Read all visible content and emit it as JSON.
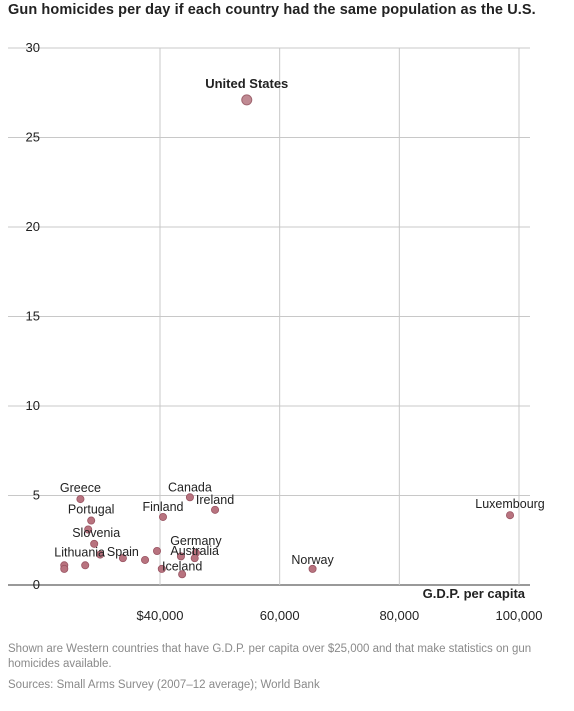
{
  "chart_data": {
    "type": "scatter",
    "title": "Gun homicides per day if each country had the same population as the U.S.",
    "xlabel": "G.D.P. per capita",
    "ylabel": "",
    "xlim": [
      21000,
      101000
    ],
    "ylim": [
      0,
      30
    ],
    "grid": true,
    "x_ticks": [
      40000,
      60000,
      80000,
      100000
    ],
    "x_tick_labels": [
      "$40,000",
      "60,000",
      "80,000",
      "100,000"
    ],
    "y_ticks": [
      0,
      5,
      10,
      15,
      20,
      25,
      30
    ],
    "y_tick_labels": [
      "0",
      "5",
      "10",
      "15",
      "20",
      "25",
      "30"
    ],
    "points": [
      {
        "label": "United States",
        "x": 54500,
        "y": 27.1,
        "highlight": true
      },
      {
        "label": "Greece",
        "x": 26700,
        "y": 4.8
      },
      {
        "label": "Portugal",
        "x": 28500,
        "y": 3.6
      },
      {
        "label": "",
        "x": 28000,
        "y": 3.1
      },
      {
        "label": "Canada",
        "x": 45000,
        "y": 4.9
      },
      {
        "label": "Finland",
        "x": 40500,
        "y": 3.8
      },
      {
        "label": "Ireland",
        "x": 49200,
        "y": 4.2
      },
      {
        "label": "Luxembourg",
        "x": 98500,
        "y": 3.9
      },
      {
        "label": "Slovenia",
        "x": 29000,
        "y": 2.3
      },
      {
        "label": "Lithuania",
        "x": 24000,
        "y": 1.1
      },
      {
        "label": "",
        "x": 24000,
        "y": 0.9
      },
      {
        "label": "",
        "x": 27500,
        "y": 1.1
      },
      {
        "label": "",
        "x": 30000,
        "y": 1.7
      },
      {
        "label": "Spain",
        "x": 33800,
        "y": 1.5
      },
      {
        "label": "",
        "x": 37500,
        "y": 1.4
      },
      {
        "label": "",
        "x": 39500,
        "y": 1.9
      },
      {
        "label": "Germany",
        "x": 46000,
        "y": 1.8
      },
      {
        "label": "Australia",
        "x": 45800,
        "y": 1.5
      },
      {
        "label": "",
        "x": 43500,
        "y": 1.6
      },
      {
        "label": "",
        "x": 40300,
        "y": 0.9
      },
      {
        "label": "Iceland",
        "x": 43700,
        "y": 0.6
      },
      {
        "label": "Norway",
        "x": 65500,
        "y": 0.9
      }
    ]
  },
  "note": "Shown are Western countries that have G.D.P. per capita over $25,000 and that make statistics on gun homicides available.",
  "source": "Sources:  Small Arms Survey (2007–12 average); World Bank",
  "colors": {
    "dot": "#b8737f",
    "grid": "#c8c8c8",
    "note_text": "#8a8a8a"
  }
}
